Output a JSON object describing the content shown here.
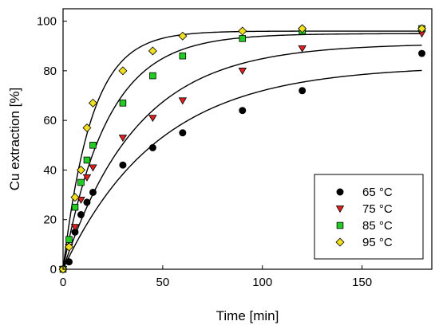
{
  "chart_data": {
    "type": "scatter",
    "xlabel": "Time [min]",
    "ylabel": "Cu extraction [%]",
    "xlim": [
      0,
      185
    ],
    "ylim": [
      0,
      105
    ],
    "xticks": [
      0,
      50,
      100,
      150
    ],
    "yticks": [
      0,
      20,
      40,
      60,
      80,
      100
    ],
    "legend_position": "bottom-right",
    "grid": false,
    "series": [
      {
        "name": "65 °C",
        "marker": "circle",
        "color": "#000000",
        "x": [
          0,
          3,
          6,
          9,
          12,
          15,
          30,
          45,
          60,
          90,
          120,
          180
        ],
        "y": [
          0,
          3,
          15,
          22,
          27,
          31,
          42,
          49,
          55,
          64,
          72,
          87
        ],
        "fit": {
          "a": 82,
          "k": 0.021
        }
      },
      {
        "name": "75 °C",
        "marker": "triangle-down",
        "color": "#e02020",
        "x": [
          0,
          3,
          6,
          9,
          12,
          15,
          30,
          45,
          60,
          90,
          120,
          180
        ],
        "y": [
          0,
          9,
          17,
          28,
          37,
          41,
          53,
          61,
          68,
          80,
          89,
          95
        ],
        "fit": {
          "a": 91,
          "k": 0.027
        }
      },
      {
        "name": "85 °C",
        "marker": "square",
        "color": "#22cc22",
        "x": [
          0,
          3,
          6,
          9,
          12,
          15,
          30,
          45,
          60,
          90,
          120,
          180
        ],
        "y": [
          0,
          12,
          25,
          35,
          44,
          50,
          67,
          78,
          86,
          93,
          96,
          97
        ],
        "fit": {
          "a": 95,
          "k": 0.045
        }
      },
      {
        "name": "95 °C",
        "marker": "diamond",
        "color": "#f0e020",
        "x": [
          0,
          3,
          6,
          9,
          12,
          15,
          30,
          45,
          60,
          90,
          120,
          180
        ],
        "y": [
          0,
          9,
          29,
          40,
          57,
          67,
          80,
          88,
          94,
          96,
          97,
          97
        ],
        "fit": {
          "a": 96,
          "k": 0.07
        }
      }
    ]
  }
}
